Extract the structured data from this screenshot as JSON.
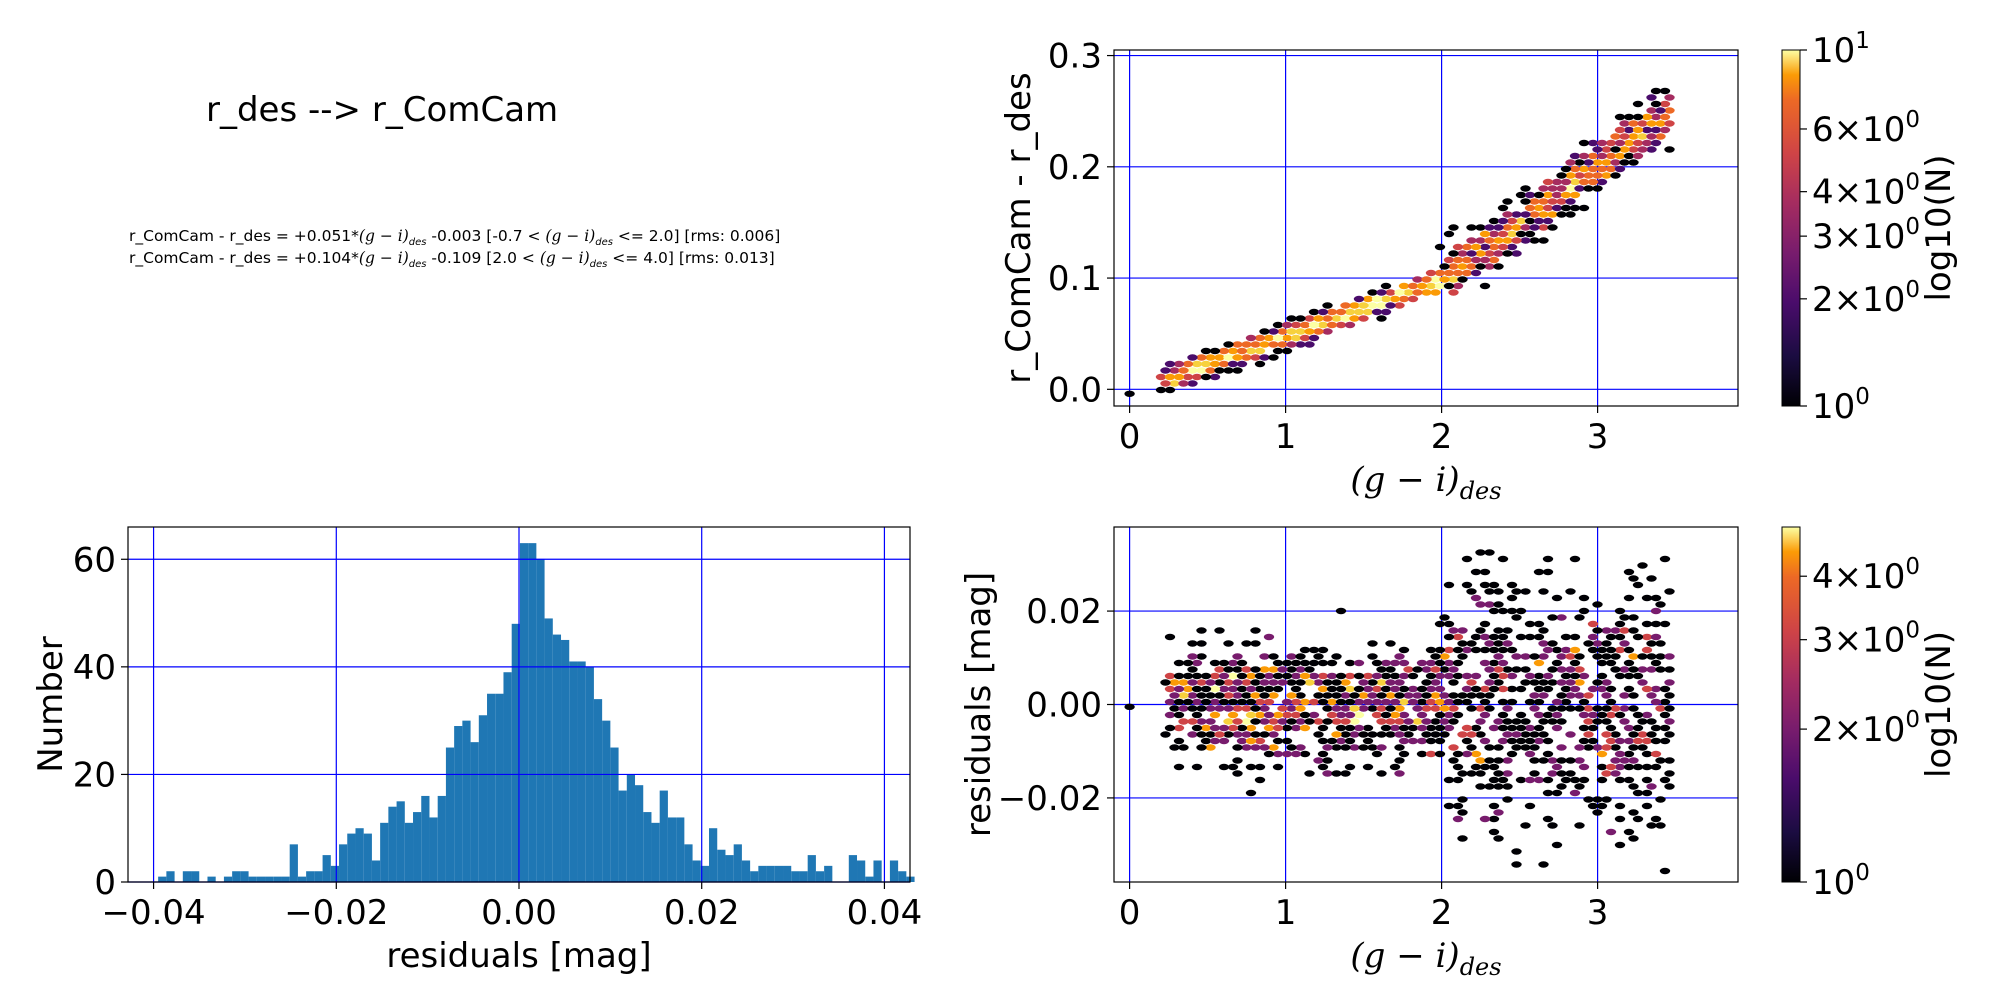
{
  "figure": {
    "title": "r_des --> r_ComCam",
    "equations": [
      {
        "lhs": "r_ComCam - r_des = +0.051*",
        "var": "(g − i)",
        "sub": "des",
        "rest": " -0.003  [-0.7 < ",
        "var2": "(g − i)",
        "sub2": "des",
        "rest2": " <= 2.0]  [rms: 0.006]"
      },
      {
        "lhs": "r_ComCam - r_des = +0.104*",
        "var": "(g − i)",
        "sub": "des",
        "rest": " -0.109  [2.0 < ",
        "var2": "(g − i)",
        "sub2": "des",
        "rest2": " <= 4.0]  [rms: 0.013]"
      }
    ]
  },
  "chart_data": [
    {
      "type": "scatter",
      "name": "color-term-hexbin",
      "xlabel": "(g − i)",
      "xlabel_sub": "des",
      "ylabel": "r_ComCam - r_des",
      "xlim": [
        -0.1,
        3.9
      ],
      "ylim": [
        -0.015,
        0.305
      ],
      "xticks": [
        0,
        1,
        2,
        3
      ],
      "yticks": [
        0.0,
        0.1,
        0.2,
        0.3
      ],
      "ytick_labels": [
        "0.0",
        "0.1",
        "0.2",
        "0.3"
      ],
      "grid": true,
      "grid_color": "#0000ff",
      "colorbar": {
        "label": "log10(N)",
        "scale": "log",
        "range": [
          1,
          10
        ],
        "ticks": [
          {
            "v": 1,
            "m": "10",
            "e": "0"
          },
          {
            "v": 2,
            "m": "2×10",
            "e": "0"
          },
          {
            "v": 3,
            "m": "3×10",
            "e": "0"
          },
          {
            "v": 4,
            "m": "4×10",
            "e": "0"
          },
          {
            "v": 6,
            "m": "6×10",
            "e": "0"
          },
          {
            "v": 10,
            "m": "10",
            "e": "1"
          }
        ]
      },
      "model": {
        "segments": [
          {
            "from": -0.7,
            "to": 2.0,
            "slope": 0.051,
            "intercept": -0.003
          },
          {
            "from": 2.0,
            "to": 4.0,
            "slope": 0.104,
            "intercept": -0.109
          }
        ],
        "data_x_range": [
          0.22,
          3.45
        ],
        "outlier_point": [
          0.0,
          -0.004
        ]
      }
    },
    {
      "type": "bar",
      "name": "residual-histogram",
      "xlabel": "residuals [mag]",
      "ylabel": "Number",
      "xlim": [
        -0.0428,
        0.0428
      ],
      "ylim": [
        0,
        66
      ],
      "xticks": [
        -0.04,
        -0.02,
        0.0,
        0.02,
        0.04
      ],
      "xtick_labels": [
        "−0.04",
        "−0.02",
        "0.00",
        "0.02",
        "0.04"
      ],
      "yticks": [
        0,
        20,
        40,
        60
      ],
      "ytick_labels": [
        "0",
        "20",
        "40",
        "60"
      ],
      "grid": true,
      "bar_color": "#1f77b4",
      "bin_start": -0.0395,
      "bin_width": 0.0009,
      "values": [
        1,
        2,
        0,
        2,
        2,
        0,
        1,
        0,
        1,
        2,
        2,
        1,
        1,
        1,
        1,
        1,
        7,
        1,
        2,
        2,
        5,
        3,
        7,
        9,
        10,
        9,
        4,
        11,
        14,
        15,
        11,
        13,
        16,
        12,
        16,
        25,
        29,
        30,
        26,
        31,
        35,
        35,
        39,
        48,
        63,
        63,
        60,
        49,
        46,
        45,
        41,
        41,
        40,
        34,
        30,
        25,
        17,
        20,
        18,
        13,
        11,
        17,
        12,
        12,
        7,
        4,
        3,
        10,
        6,
        5,
        7,
        4,
        2,
        3,
        3,
        3,
        3,
        2,
        2,
        5,
        2,
        3,
        0,
        0,
        5,
        4,
        1,
        4,
        0,
        4,
        2,
        1
      ]
    },
    {
      "type": "scatter",
      "name": "residuals-hexbin",
      "xlabel": "(g − i)",
      "xlabel_sub": "des",
      "ylabel": "residuals [mag]",
      "xlim": [
        -0.1,
        3.9
      ],
      "ylim": [
        -0.038,
        0.038
      ],
      "xticks": [
        0,
        1,
        2,
        3
      ],
      "yticks": [
        -0.02,
        0.0,
        0.02
      ],
      "ytick_labels": [
        "−0.02",
        "0.00",
        "0.02"
      ],
      "grid": true,
      "colorbar": {
        "label": "log10(N)",
        "scale": "log",
        "range": [
          1,
          5
        ],
        "ticks": [
          {
            "v": 1,
            "m": "10",
            "e": "0"
          },
          {
            "v": 2,
            "m": "2×10",
            "e": "0"
          },
          {
            "v": 3,
            "m": "3×10",
            "e": "0"
          },
          {
            "v": 4,
            "m": "4×10",
            "e": "0"
          }
        ]
      },
      "model": {
        "data_x_range": [
          0.22,
          3.45
        ],
        "scatter_small": 0.006,
        "scatter_large": 0.013,
        "split": 2.0,
        "outlier_point": [
          0.0,
          -0.0005
        ]
      }
    }
  ]
}
